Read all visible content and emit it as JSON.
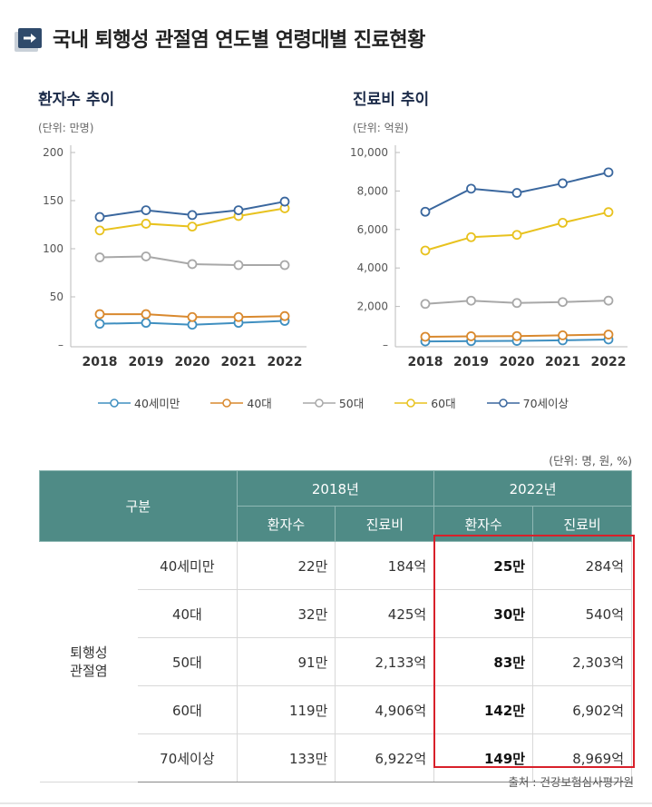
{
  "header": {
    "title": "국내 퇴행성 관절염 연도별 연령대별 진료현황"
  },
  "chart_data": [
    {
      "type": "line",
      "title": "환자수 추이",
      "unit": "(단위: 만명)",
      "x": [
        "2018",
        "2019",
        "2020",
        "2021",
        "2022"
      ],
      "y_ticks": [
        "200",
        "150",
        "100",
        "50",
        "–"
      ],
      "ylim": [
        0,
        200
      ],
      "series": [
        {
          "name": "40세미만",
          "color": "#3f8fc0",
          "values": [
            22,
            23,
            21,
            23,
            25
          ]
        },
        {
          "name": "40대",
          "color": "#d9892e",
          "values": [
            32,
            32,
            29,
            29,
            30
          ]
        },
        {
          "name": "50대",
          "color": "#a8a8a8",
          "values": [
            91,
            92,
            84,
            83,
            83
          ]
        },
        {
          "name": "60대",
          "color": "#e8c21e",
          "values": [
            119,
            126,
            123,
            134,
            142
          ]
        },
        {
          "name": "70세이상",
          "color": "#3a679e",
          "values": [
            133,
            140,
            135,
            140,
            149
          ]
        }
      ]
    },
    {
      "type": "line",
      "title": "진료비 추이",
      "unit": "(단위: 억원)",
      "x": [
        "2018",
        "2019",
        "2020",
        "2021",
        "2022"
      ],
      "y_ticks": [
        "10,000",
        "8,000",
        "6,000",
        "4,000",
        "2,000",
        "–"
      ],
      "ylim": [
        0,
        10000
      ],
      "series": [
        {
          "name": "40세미만",
          "color": "#3f8fc0",
          "values": [
            184,
            200,
            210,
            240,
            284
          ]
        },
        {
          "name": "40대",
          "color": "#d9892e",
          "values": [
            425,
            450,
            460,
            500,
            540
          ]
        },
        {
          "name": "50대",
          "color": "#a8a8a8",
          "values": [
            2133,
            2300,
            2180,
            2230,
            2303
          ]
        },
        {
          "name": "60대",
          "color": "#e8c21e",
          "values": [
            4906,
            5600,
            5720,
            6350,
            6902
          ]
        },
        {
          "name": "70세이상",
          "color": "#3a679e",
          "values": [
            6922,
            8120,
            7900,
            8400,
            8969
          ]
        }
      ]
    }
  ],
  "legend": [
    {
      "name": "40세미만",
      "color": "#3f8fc0"
    },
    {
      "name": "40대",
      "color": "#d9892e"
    },
    {
      "name": "50대",
      "color": "#a8a8a8"
    },
    {
      "name": "60대",
      "color": "#e8c21e"
    },
    {
      "name": "70세이상",
      "color": "#3a679e"
    }
  ],
  "table": {
    "unit_note": "(단위: 명, 원, %)",
    "header_category": "구분",
    "year_a": "2018년",
    "year_b": "2022년",
    "col_patients": "환자수",
    "col_cost": "진료비",
    "group_line1": "퇴행성",
    "group_line2": "관절염",
    "rows": [
      {
        "age": "40세미만",
        "p2018": "22만",
        "c2018": "184억",
        "p2022": "25만",
        "c2022": "284억"
      },
      {
        "age": "40대",
        "p2018": "32만",
        "c2018": "425억",
        "p2022": "30만",
        "c2022": "540억"
      },
      {
        "age": "50대",
        "p2018": "91만",
        "c2018": "2,133억",
        "p2022": "83만",
        "c2022": "2,303억"
      },
      {
        "age": "60대",
        "p2018": "119만",
        "c2018": "4,906억",
        "p2022": "142만",
        "c2022": "6,902억"
      },
      {
        "age": "70세이상",
        "p2018": "133만",
        "c2018": "6,922억",
        "p2022": "149만",
        "c2022": "8,969억"
      }
    ],
    "source": "출처 : 건강보험심사평가원"
  }
}
